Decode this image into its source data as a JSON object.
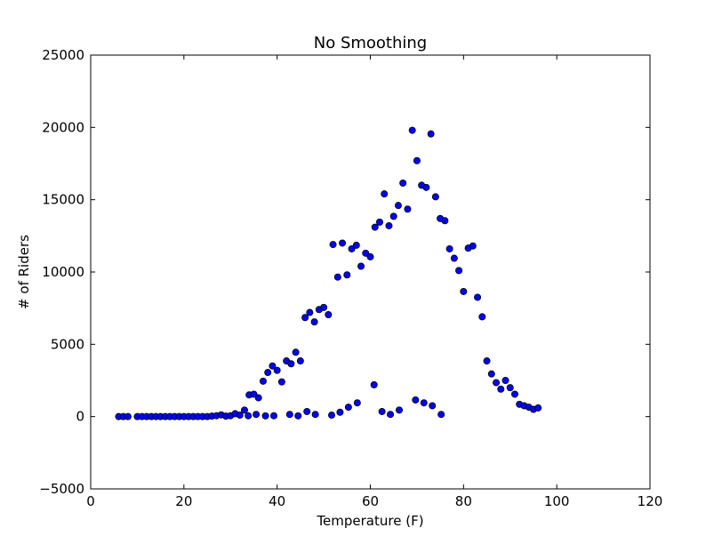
{
  "chart_data": {
    "type": "scatter",
    "title": "No Smoothing",
    "xlabel": "Temperature (F)",
    "ylabel": "# of Riders",
    "xlim": [
      0,
      120
    ],
    "ylim": [
      -5000,
      25000
    ],
    "xticks": [
      0,
      20,
      40,
      60,
      80,
      100,
      120
    ],
    "yticks": [
      -5000,
      0,
      5000,
      10000,
      15000,
      20000,
      25000
    ],
    "xtick_labels": [
      "0",
      "20",
      "40",
      "60",
      "80",
      "100",
      "120"
    ],
    "ytick_labels": [
      "−5000",
      "0",
      "5000",
      "10000",
      "15000",
      "20000",
      "25000"
    ],
    "grid": false,
    "marker_color": "#0000ff",
    "marker_edge_color": "#000000",
    "points": [
      [
        6,
        0
      ],
      [
        7,
        0
      ],
      [
        8,
        0
      ],
      [
        10,
        0
      ],
      [
        11,
        0
      ],
      [
        12,
        0
      ],
      [
        13,
        0
      ],
      [
        14,
        0
      ],
      [
        15,
        0
      ],
      [
        16,
        0
      ],
      [
        17,
        0
      ],
      [
        18,
        0
      ],
      [
        19,
        0
      ],
      [
        20,
        0
      ],
      [
        21,
        0
      ],
      [
        22,
        0
      ],
      [
        23,
        0
      ],
      [
        24,
        0
      ],
      [
        25,
        0
      ],
      [
        26,
        30
      ],
      [
        27,
        60
      ],
      [
        28,
        120
      ],
      [
        29,
        30
      ],
      [
        30,
        60
      ],
      [
        31,
        200
      ],
      [
        32,
        100
      ],
      [
        33,
        450
      ],
      [
        33.8,
        60
      ],
      [
        34,
        1500
      ],
      [
        35,
        1550
      ],
      [
        35.5,
        150
      ],
      [
        36,
        1300
      ],
      [
        37,
        2450
      ],
      [
        37.5,
        50
      ],
      [
        38,
        3050
      ],
      [
        39,
        3500
      ],
      [
        39.3,
        60
      ],
      [
        40,
        3200
      ],
      [
        41,
        2400
      ],
      [
        42,
        3850
      ],
      [
        42.7,
        150
      ],
      [
        43,
        3650
      ],
      [
        44,
        4450
      ],
      [
        44.5,
        50
      ],
      [
        45,
        3850
      ],
      [
        46,
        6850
      ],
      [
        46.4,
        350
      ],
      [
        47,
        7200
      ],
      [
        48,
        6550
      ],
      [
        48.2,
        150
      ],
      [
        49,
        7400
      ],
      [
        50,
        7550
      ],
      [
        51,
        7050
      ],
      [
        51.7,
        100
      ],
      [
        52,
        11900
      ],
      [
        53,
        9650
      ],
      [
        53.5,
        300
      ],
      [
        54,
        12000
      ],
      [
        55,
        9800
      ],
      [
        55.3,
        650
      ],
      [
        56,
        11600
      ],
      [
        57,
        11850
      ],
      [
        57.2,
        950
      ],
      [
        58,
        10400
      ],
      [
        59,
        11300
      ],
      [
        60,
        11050
      ],
      [
        60.8,
        2200
      ],
      [
        61,
        13100
      ],
      [
        62,
        13450
      ],
      [
        62.5,
        350
      ],
      [
        63,
        15400
      ],
      [
        64,
        13200
      ],
      [
        64.3,
        150
      ],
      [
        65,
        13850
      ],
      [
        66,
        14600
      ],
      [
        66.2,
        450
      ],
      [
        67,
        16150
      ],
      [
        68,
        14350
      ],
      [
        69,
        19800
      ],
      [
        69.7,
        1150
      ],
      [
        70,
        17700
      ],
      [
        71,
        16000
      ],
      [
        71.5,
        950
      ],
      [
        72,
        15850
      ],
      [
        73,
        19550
      ],
      [
        73.3,
        750
      ],
      [
        74,
        15200
      ],
      [
        75,
        13700
      ],
      [
        75.2,
        150
      ],
      [
        76,
        13550
      ],
      [
        77,
        11600
      ],
      [
        78,
        10950
      ],
      [
        79,
        10100
      ],
      [
        80,
        8650
      ],
      [
        81,
        11650
      ],
      [
        82,
        11800
      ],
      [
        83,
        8250
      ],
      [
        84,
        6900
      ],
      [
        85,
        3850
      ],
      [
        86,
        2950
      ],
      [
        87,
        2350
      ],
      [
        88,
        1900
      ],
      [
        89,
        2500
      ],
      [
        90,
        2000
      ],
      [
        91,
        1550
      ],
      [
        92,
        850
      ],
      [
        93,
        750
      ],
      [
        94,
        650
      ],
      [
        95,
        500
      ],
      [
        96,
        600
      ]
    ]
  }
}
